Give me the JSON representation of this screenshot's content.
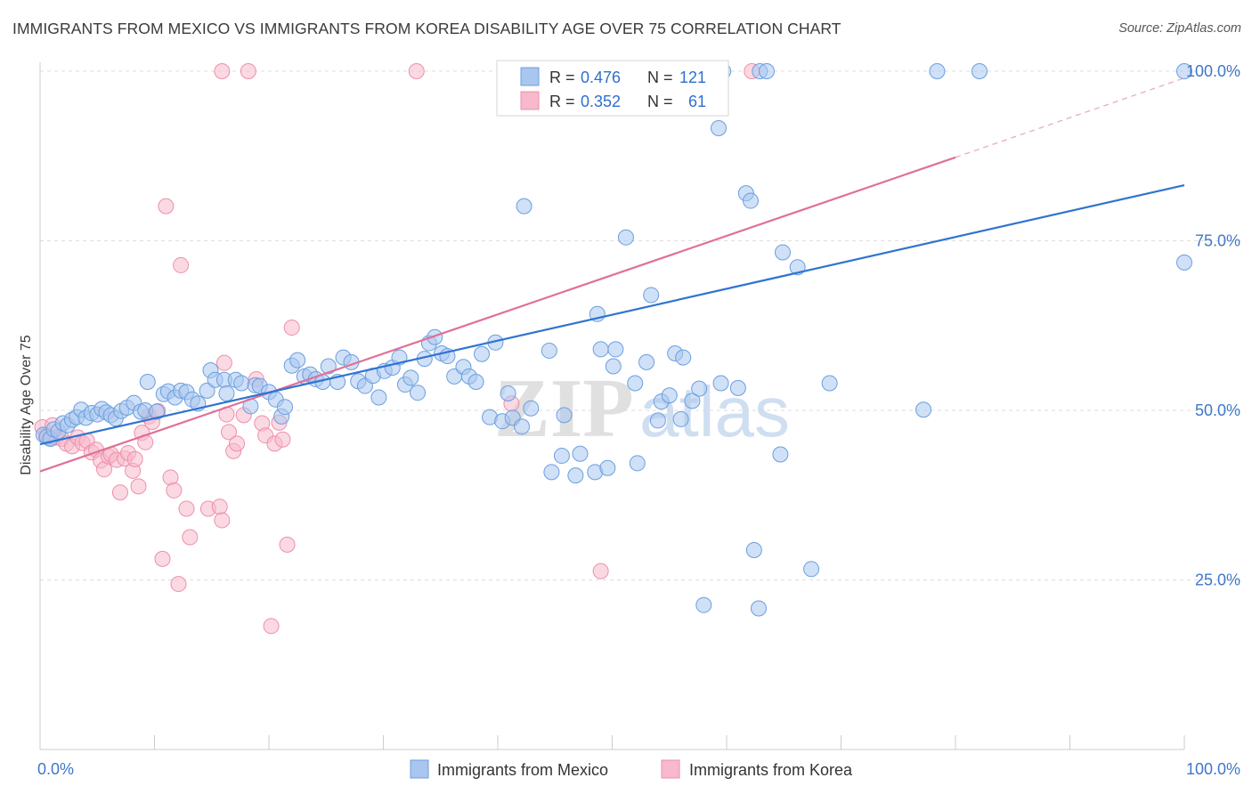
{
  "title": "IMMIGRANTS FROM MEXICO VS IMMIGRANTS FROM KOREA DISABILITY AGE OVER 75 CORRELATION CHART",
  "source": "Source: ZipAtlas.com",
  "watermark": {
    "part1": "ZIP",
    "part2": "atlas"
  },
  "colors": {
    "mexico_fill": "#a9c6ef",
    "mexico_stroke": "#6a9fe0",
    "mexico_line": "#2f74d0",
    "korea_fill": "#f7b9cb",
    "korea_stroke": "#ee8fac",
    "korea_line": "#e07098",
    "tick_label": "#3f77c9",
    "grid": "#dddddd"
  },
  "chart_data": {
    "type": "scatter",
    "title": "IMMIGRANTS FROM MEXICO VS IMMIGRANTS FROM KOREA DISABILITY AGE OVER 75 CORRELATION CHART",
    "xlabel": "",
    "ylabel": "Disability Age Over 75",
    "xlim": [
      0,
      100
    ],
    "ylim": [
      0,
      100
    ],
    "x_tick_labels": [
      {
        "value": 0,
        "label": "0.0%"
      },
      {
        "value": 100,
        "label": "100.0%"
      }
    ],
    "y_tick_labels": [
      {
        "value": 25,
        "label": "25.0%"
      },
      {
        "value": 50,
        "label": "50.0%"
      },
      {
        "value": 75,
        "label": "75.0%"
      },
      {
        "value": 100,
        "label": "100.0%"
      }
    ],
    "grid": true,
    "legend_position": "top-center",
    "stats": [
      {
        "r_label": "R =",
        "r_value": "0.476",
        "n_label": "N =",
        "n_value": "121"
      },
      {
        "r_label": "R =",
        "r_value": "0.352",
        "n_label": "N =",
        "n_value": "61"
      }
    ],
    "series": [
      {
        "name": "Immigrants from Mexico",
        "trend": {
          "x": [
            0,
            100
          ],
          "y": [
            45.0,
            83.2
          ]
        },
        "points": [
          [
            0.3,
            46.4
          ],
          [
            0.6,
            46.1
          ],
          [
            0.9,
            45.8
          ],
          [
            1.2,
            47.2
          ],
          [
            1.6,
            46.9
          ],
          [
            2.0,
            48.1
          ],
          [
            2.4,
            47.8
          ],
          [
            2.8,
            48.6
          ],
          [
            3.2,
            49.0
          ],
          [
            3.6,
            50.1
          ],
          [
            4.0,
            48.9
          ],
          [
            4.5,
            49.6
          ],
          [
            5.0,
            49.4
          ],
          [
            5.4,
            50.2
          ],
          [
            5.8,
            49.7
          ],
          [
            6.2,
            49.3
          ],
          [
            6.6,
            48.8
          ],
          [
            7.1,
            49.9
          ],
          [
            7.6,
            50.4
          ],
          [
            8.2,
            51.1
          ],
          [
            8.8,
            49.8
          ],
          [
            9.2,
            50.0
          ],
          [
            9.4,
            54.2
          ],
          [
            10.2,
            49.8
          ],
          [
            10.8,
            52.4
          ],
          [
            11.2,
            52.8
          ],
          [
            11.8,
            51.9
          ],
          [
            12.3,
            52.9
          ],
          [
            12.8,
            52.7
          ],
          [
            13.3,
            51.6
          ],
          [
            13.8,
            51.0
          ],
          [
            14.6,
            52.9
          ],
          [
            14.9,
            55.9
          ],
          [
            15.3,
            54.5
          ],
          [
            16.1,
            54.5
          ],
          [
            16.3,
            52.5
          ],
          [
            17.1,
            54.5
          ],
          [
            17.6,
            54.0
          ],
          [
            18.4,
            50.6
          ],
          [
            18.8,
            53.7
          ],
          [
            19.2,
            53.6
          ],
          [
            20.0,
            52.7
          ],
          [
            20.6,
            51.6
          ],
          [
            21.1,
            49.1
          ],
          [
            21.4,
            50.5
          ],
          [
            22.0,
            56.6
          ],
          [
            22.5,
            57.4
          ],
          [
            23.1,
            55.0
          ],
          [
            23.6,
            55.3
          ],
          [
            24.1,
            54.6
          ],
          [
            24.7,
            54.2
          ],
          [
            25.2,
            56.5
          ],
          [
            26.0,
            54.2
          ],
          [
            26.5,
            57.8
          ],
          [
            27.2,
            57.1
          ],
          [
            27.8,
            54.3
          ],
          [
            28.4,
            53.6
          ],
          [
            29.1,
            55.1
          ],
          [
            29.6,
            51.9
          ],
          [
            30.1,
            55.8
          ],
          [
            30.8,
            56.3
          ],
          [
            31.4,
            57.8
          ],
          [
            31.9,
            53.8
          ],
          [
            32.4,
            54.8
          ],
          [
            33.0,
            52.6
          ],
          [
            33.6,
            57.6
          ],
          [
            34.0,
            59.9
          ],
          [
            34.5,
            60.8
          ],
          [
            35.1,
            58.4
          ],
          [
            35.6,
            58.0
          ],
          [
            36.2,
            55.0
          ],
          [
            37.0,
            56.4
          ],
          [
            37.5,
            55.0
          ],
          [
            38.1,
            54.2
          ],
          [
            38.6,
            58.3
          ],
          [
            39.3,
            49.0
          ],
          [
            39.8,
            60.0
          ],
          [
            40.4,
            48.4
          ],
          [
            40.9,
            52.5
          ],
          [
            41.3,
            48.9
          ],
          [
            42.1,
            47.6
          ],
          [
            42.9,
            50.3
          ],
          [
            44.5,
            58.8
          ],
          [
            44.7,
            40.9
          ],
          [
            45.6,
            43.3
          ],
          [
            45.8,
            49.3
          ],
          [
            46.8,
            40.4
          ],
          [
            47.2,
            43.6
          ],
          [
            48.5,
            40.9
          ],
          [
            48.7,
            64.2
          ],
          [
            49.0,
            59.0
          ],
          [
            49.6,
            41.5
          ],
          [
            50.1,
            56.5
          ],
          [
            50.3,
            59.0
          ],
          [
            51.2,
            75.5
          ],
          [
            52.0,
            54.0
          ],
          [
            52.2,
            42.2
          ],
          [
            53.0,
            57.1
          ],
          [
            53.4,
            67.0
          ],
          [
            54.0,
            48.5
          ],
          [
            54.3,
            51.3
          ],
          [
            55.0,
            52.2
          ],
          [
            55.5,
            58.4
          ],
          [
            56.0,
            48.7
          ],
          [
            56.2,
            57.8
          ],
          [
            57.0,
            51.4
          ],
          [
            57.6,
            53.2
          ],
          [
            58.0,
            21.3
          ],
          [
            59.3,
            91.6
          ],
          [
            59.5,
            54.0
          ],
          [
            61.0,
            53.3
          ],
          [
            61.7,
            82.0
          ],
          [
            62.1,
            80.9
          ],
          [
            62.4,
            29.4
          ],
          [
            62.8,
            20.8
          ],
          [
            64.7,
            43.5
          ],
          [
            64.9,
            73.3
          ],
          [
            66.2,
            71.1
          ],
          [
            67.4,
            26.6
          ],
          [
            69.0,
            54.0
          ],
          [
            77.2,
            50.1
          ],
          [
            100.0,
            71.8
          ]
        ],
        "top_points": [
          [
            42.3,
            80.1
          ],
          [
            54.8,
            100.0
          ],
          [
            56.9,
            100.0
          ],
          [
            57.4,
            100.0
          ],
          [
            59.7,
            100.0
          ],
          [
            62.9,
            100.0
          ],
          [
            63.5,
            100.0
          ],
          [
            78.4,
            100.0
          ],
          [
            82.1,
            100.0
          ],
          [
            100.0,
            100.0
          ]
        ]
      },
      {
        "name": "Immigrants from Korea",
        "trend": {
          "x": [
            0,
            80
          ],
          "y": [
            41.0,
            87.3
          ]
        },
        "trend_dashed": {
          "x": [
            80,
            100
          ],
          "y": [
            87.3,
            99.0
          ]
        },
        "points": [
          [
            0.2,
            47.5
          ],
          [
            0.5,
            46.3
          ],
          [
            0.8,
            45.9
          ],
          [
            1.1,
            47.8
          ],
          [
            1.4,
            46.0
          ],
          [
            1.9,
            45.8
          ],
          [
            2.3,
            45.1
          ],
          [
            2.8,
            44.7
          ],
          [
            3.3,
            46.0
          ],
          [
            3.7,
            45.2
          ],
          [
            4.1,
            45.5
          ],
          [
            4.5,
            43.8
          ],
          [
            4.9,
            44.2
          ],
          [
            5.3,
            42.6
          ],
          [
            5.6,
            41.3
          ],
          [
            6.0,
            43.2
          ],
          [
            6.2,
            43.5
          ],
          [
            6.7,
            42.7
          ],
          [
            7.0,
            37.9
          ],
          [
            7.4,
            42.9
          ],
          [
            7.7,
            43.7
          ],
          [
            8.1,
            41.1
          ],
          [
            8.3,
            42.8
          ],
          [
            8.6,
            38.8
          ],
          [
            8.9,
            46.7
          ],
          [
            9.2,
            45.3
          ],
          [
            9.5,
            49.1
          ],
          [
            9.8,
            48.3
          ],
          [
            10.3,
            49.9
          ],
          [
            10.7,
            28.1
          ],
          [
            11.0,
            80.1
          ],
          [
            11.4,
            40.1
          ],
          [
            11.7,
            38.2
          ],
          [
            12.1,
            24.4
          ],
          [
            12.3,
            71.4
          ],
          [
            12.8,
            35.5
          ],
          [
            13.1,
            31.3
          ],
          [
            14.7,
            35.5
          ],
          [
            15.7,
            35.8
          ],
          [
            15.9,
            33.8
          ],
          [
            15.9,
            100.0
          ],
          [
            16.1,
            57.0
          ],
          [
            16.3,
            49.4
          ],
          [
            16.5,
            46.8
          ],
          [
            16.9,
            44.0
          ],
          [
            17.2,
            45.1
          ],
          [
            17.8,
            49.3
          ],
          [
            18.2,
            100.0
          ],
          [
            18.9,
            54.6
          ],
          [
            19.4,
            48.1
          ],
          [
            19.7,
            46.3
          ],
          [
            20.2,
            18.2
          ],
          [
            20.5,
            45.1
          ],
          [
            20.9,
            48.2
          ],
          [
            21.2,
            45.7
          ],
          [
            21.6,
            30.2
          ],
          [
            22.0,
            62.2
          ],
          [
            32.9,
            100.0
          ],
          [
            41.2,
            51.0
          ],
          [
            49.0,
            26.3
          ],
          [
            62.2,
            100.0
          ]
        ]
      }
    ]
  },
  "legend": [
    {
      "label": "Immigrants from Mexico"
    },
    {
      "label": "Immigrants from Korea"
    }
  ]
}
